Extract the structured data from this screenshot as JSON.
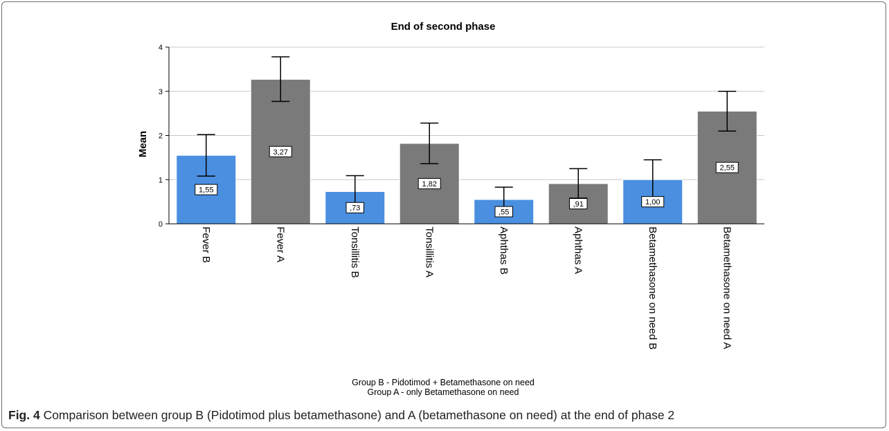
{
  "chart_data": {
    "type": "bar",
    "title": "End of second phase",
    "ylabel": "Mean",
    "xlabel_lines": [
      "Group B - Pidotimod + Betamethasone on need",
      "Group A - only Betamethasone on need"
    ],
    "ylim": [
      0,
      4
    ],
    "yticks": [
      "0",
      "1",
      "2",
      "3",
      "4"
    ],
    "categories": [
      "Fever B",
      "Fever A",
      "Tonsillitis B",
      "Tonsillitis A",
      "Aphthas B",
      "Aphthas A",
      "Betamethasone on need B",
      "Betamethasone on need A"
    ],
    "values": [
      1.55,
      3.27,
      0.73,
      1.82,
      0.55,
      0.91,
      1.0,
      2.55
    ],
    "value_labels": [
      "1,55",
      "3,27",
      ",73",
      "1,82",
      ",55",
      ",91",
      "1,00",
      "2,55"
    ],
    "error_low": [
      1.08,
      2.77,
      0.38,
      1.36,
      0.27,
      0.58,
      0.55,
      2.1
    ],
    "error_high": [
      2.02,
      3.78,
      1.09,
      2.28,
      0.83,
      1.25,
      1.45,
      3.0
    ],
    "groups": [
      "B",
      "A",
      "B",
      "A",
      "B",
      "A",
      "B",
      "A"
    ],
    "colors": {
      "B": "#4a8fe0",
      "A": "#7a7a7a",
      "grid": "#c8c8c8",
      "axis": "#000000"
    },
    "grid": true
  },
  "caption": {
    "label": "Fig. 4",
    "text": " Comparison between group B (Pidotimod plus betamethasone) and A (betamethasone on need) at the end of phase 2"
  }
}
